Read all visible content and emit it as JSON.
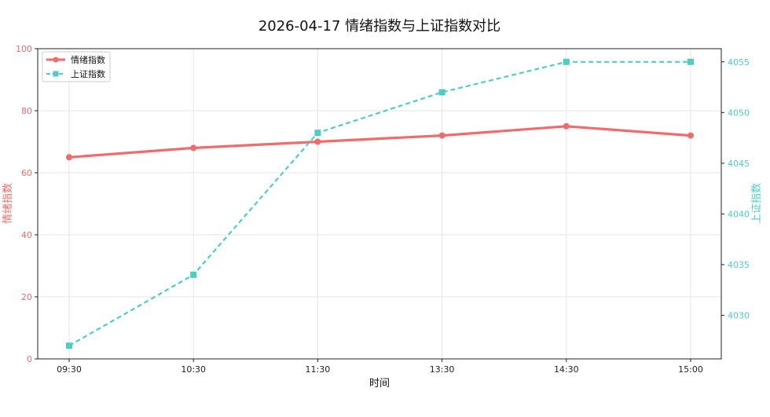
{
  "chart_data": {
    "type": "line",
    "title": "2026-04-17 情绪指数与上证指数对比",
    "xlabel": "时间",
    "ylabel_left": "情绪指数",
    "ylabel_right": "上证指数",
    "categories": [
      "09:30",
      "10:30",
      "11:30",
      "13:30",
      "14:30",
      "15:00"
    ],
    "series": [
      {
        "name": "情绪指数",
        "axis": "left",
        "color": "#f06b6b",
        "marker": "circle",
        "line": "solid",
        "values": [
          65,
          68,
          70,
          72,
          75,
          72
        ]
      },
      {
        "name": "上证指数",
        "axis": "right",
        "color": "#4ecdc4",
        "marker": "square",
        "line": "dashed",
        "values": [
          4027,
          4034,
          4048,
          4052,
          4055,
          4055
        ]
      }
    ],
    "ylim_left": [
      0,
      100
    ],
    "yticks_left": [
      0,
      20,
      40,
      60,
      80,
      100
    ],
    "ylim_right": [
      4025.7,
      4056.3
    ],
    "yticks_right": [
      4030,
      4035,
      4040,
      4045,
      4050,
      4055
    ],
    "grid": true,
    "legend": "top-left"
  }
}
